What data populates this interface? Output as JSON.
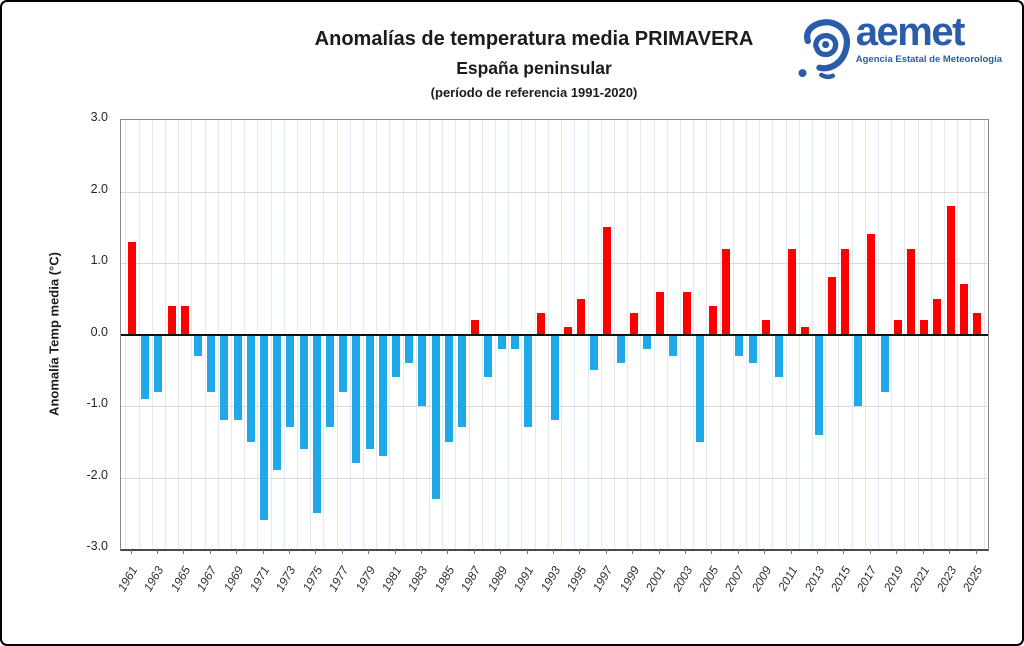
{
  "header": {
    "title": "Anomalías de temperatura media PRIMAVERA",
    "subtitle": "España peninsular",
    "reference_note": "(período de referencia 1991-2020)"
  },
  "logo": {
    "brand": "aemet",
    "tagline": "Agencia Estatal de Meteorología",
    "color": "#2a5caa"
  },
  "chart_data": {
    "type": "bar",
    "title": "Anomalías de temperatura media PRIMAVERA",
    "subtitle": "España peninsular",
    "reference_note": "(período de referencia 1991-2020)",
    "xlabel": "",
    "ylabel": "Anomalía Temp media (°C)",
    "ylim": [
      -3.0,
      3.0
    ],
    "grid": true,
    "legend": "none",
    "positive_color": "#ff0000",
    "negative_color": "#1fa9e8",
    "h_grid_color": "#d9d9d9",
    "v_grid_color": "#e2e9f1",
    "ytick_values": [
      3.0,
      2.0,
      1.0,
      0.0,
      -1.0,
      -2.0,
      -3.0
    ],
    "ytick_labels": [
      "3.0",
      "2.0",
      "1.0",
      "0.0",
      "-1.0",
      "-2.0",
      "-3.0"
    ],
    "xtick_labels": [
      "1961",
      "1963",
      "1965",
      "1967",
      "1969",
      "1971",
      "1973",
      "1975",
      "1977",
      "1979",
      "1981",
      "1983",
      "1985",
      "1987",
      "1989",
      "1991",
      "1993",
      "1995",
      "1997",
      "1999",
      "2001",
      "2003",
      "2005",
      "2007",
      "2009",
      "2011",
      "2013",
      "2015",
      "2017",
      "2019",
      "2021",
      "2023",
      "2025"
    ],
    "years": [
      1961,
      1962,
      1963,
      1964,
      1965,
      1966,
      1967,
      1968,
      1969,
      1970,
      1971,
      1972,
      1973,
      1974,
      1975,
      1976,
      1977,
      1978,
      1979,
      1980,
      1981,
      1982,
      1983,
      1984,
      1985,
      1986,
      1987,
      1988,
      1989,
      1990,
      1991,
      1992,
      1993,
      1994,
      1995,
      1996,
      1997,
      1998,
      1999,
      2000,
      2001,
      2002,
      2003,
      2004,
      2005,
      2006,
      2007,
      2008,
      2009,
      2010,
      2011,
      2012,
      2013,
      2014,
      2015,
      2016,
      2017,
      2018,
      2019,
      2020,
      2021,
      2022,
      2023,
      2024,
      2025
    ],
    "values": [
      1.3,
      -0.9,
      -0.8,
      0.4,
      0.4,
      -0.3,
      -0.8,
      -1.2,
      -1.2,
      -1.5,
      -2.6,
      -1.9,
      -1.3,
      -1.6,
      -2.5,
      -1.3,
      -0.8,
      -1.8,
      -1.6,
      -1.7,
      -0.6,
      -0.4,
      -1.0,
      -2.3,
      -1.5,
      -1.3,
      0.2,
      -0.6,
      -0.2,
      -0.2,
      -1.3,
      0.3,
      -1.2,
      0.1,
      0.5,
      -0.5,
      1.5,
      -0.4,
      0.3,
      -0.2,
      0.6,
      -0.3,
      0.6,
      -1.5,
      0.4,
      1.2,
      -0.3,
      -0.4,
      0.2,
      -0.6,
      1.2,
      0.1,
      -1.4,
      0.8,
      1.2,
      -1.0,
      1.4,
      -0.8,
      0.2,
      1.2,
      0.2,
      0.5,
      1.8,
      0.7,
      0.3
    ]
  }
}
